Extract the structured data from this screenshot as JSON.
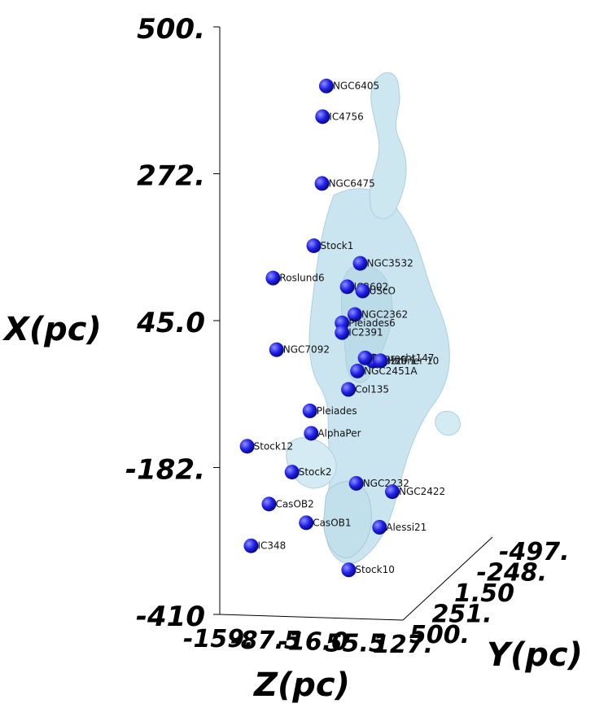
{
  "chart_data": {
    "type": "scatter",
    "title": "",
    "axes": {
      "x": {
        "label": "X(pc)",
        "ticks": [
          "500.",
          "272.",
          "45.0",
          "-182.",
          "-410"
        ],
        "range": [
          -410,
          500
        ]
      },
      "y": {
        "label": "Y(pc)",
        "ticks": [
          "-497.",
          "-248.",
          "1.50",
          "251.",
          "500."
        ],
        "range": [
          -497,
          500
        ]
      },
      "z": {
        "label": "Z(pc)",
        "ticks": [
          "-159.",
          "-87.5",
          "-16.0",
          "55.5",
          "127."
        ],
        "range": [
          -159,
          127
        ]
      }
    },
    "colors": {
      "points": "#1e1ee6",
      "density": "#8ec7dc"
    },
    "points": [
      {
        "name": "NGC6405",
        "x": 410,
        "y": -60,
        "z": 20
      },
      {
        "name": "IC4756",
        "x": 362,
        "y": -40,
        "z": 10
      },
      {
        "name": "NGC6475",
        "x": 258,
        "y": -20,
        "z": 5
      },
      {
        "name": "Stock1",
        "x": 160,
        "y": 40,
        "z": -20
      },
      {
        "name": "NGC3532",
        "x": 130,
        "y": 150,
        "z": 30
      },
      {
        "name": "Roslund6",
        "x": 108,
        "y": 120,
        "z": -100
      },
      {
        "name": "IC2602",
        "x": 95,
        "y": 100,
        "z": 20
      },
      {
        "name": "UScO",
        "x": 88,
        "y": 120,
        "z": 40
      },
      {
        "name": "NGC2362",
        "x": 53,
        "y": 60,
        "z": 40
      },
      {
        "name": "Pleiades6",
        "x": 40,
        "y": 60,
        "z": 20
      },
      {
        "name": "IC2391",
        "x": 25,
        "y": 60,
        "z": 20
      },
      {
        "name": "NGC7092",
        "x": 0,
        "y": 0,
        "z": -70
      },
      {
        "name": "Pozzo 1",
        "x": -20,
        "y": 100,
        "z": 60
      },
      {
        "name": "Ruprecht147",
        "x": -15,
        "y": 90,
        "z": 50
      },
      {
        "name": "Haffner 10",
        "x": -20,
        "y": 110,
        "z": 70
      },
      {
        "name": "NGC2451A",
        "x": -35,
        "y": 80,
        "z": 40
      },
      {
        "name": "Col135",
        "x": -63,
        "y": 60,
        "z": 30
      },
      {
        "name": "Pleiades",
        "x": -95,
        "y": 10,
        "z": -20
      },
      {
        "name": "AlphaPer",
        "x": -130,
        "y": 20,
        "z": -20
      },
      {
        "name": "Stock12",
        "x": -150,
        "y": 20,
        "z": -120
      },
      {
        "name": "Stock2",
        "x": -190,
        "y": 20,
        "z": -50
      },
      {
        "name": "NGC2232",
        "x": -210,
        "y": 120,
        "z": 30
      },
      {
        "name": "NGC2422",
        "x": -225,
        "y": 200,
        "z": 70
      },
      {
        "name": "CasOB2",
        "x": -240,
        "y": 40,
        "z": -90
      },
      {
        "name": "CasOB1",
        "x": -270,
        "y": 80,
        "z": -40
      },
      {
        "name": "Alessi21",
        "x": -280,
        "y": 200,
        "z": 50
      },
      {
        "name": "IC348",
        "x": -305,
        "y": 50,
        "z": -120
      },
      {
        "name": "Stock10",
        "x": -345,
        "y": 160,
        "z": 10
      }
    ],
    "legend": "none",
    "grid": false
  }
}
